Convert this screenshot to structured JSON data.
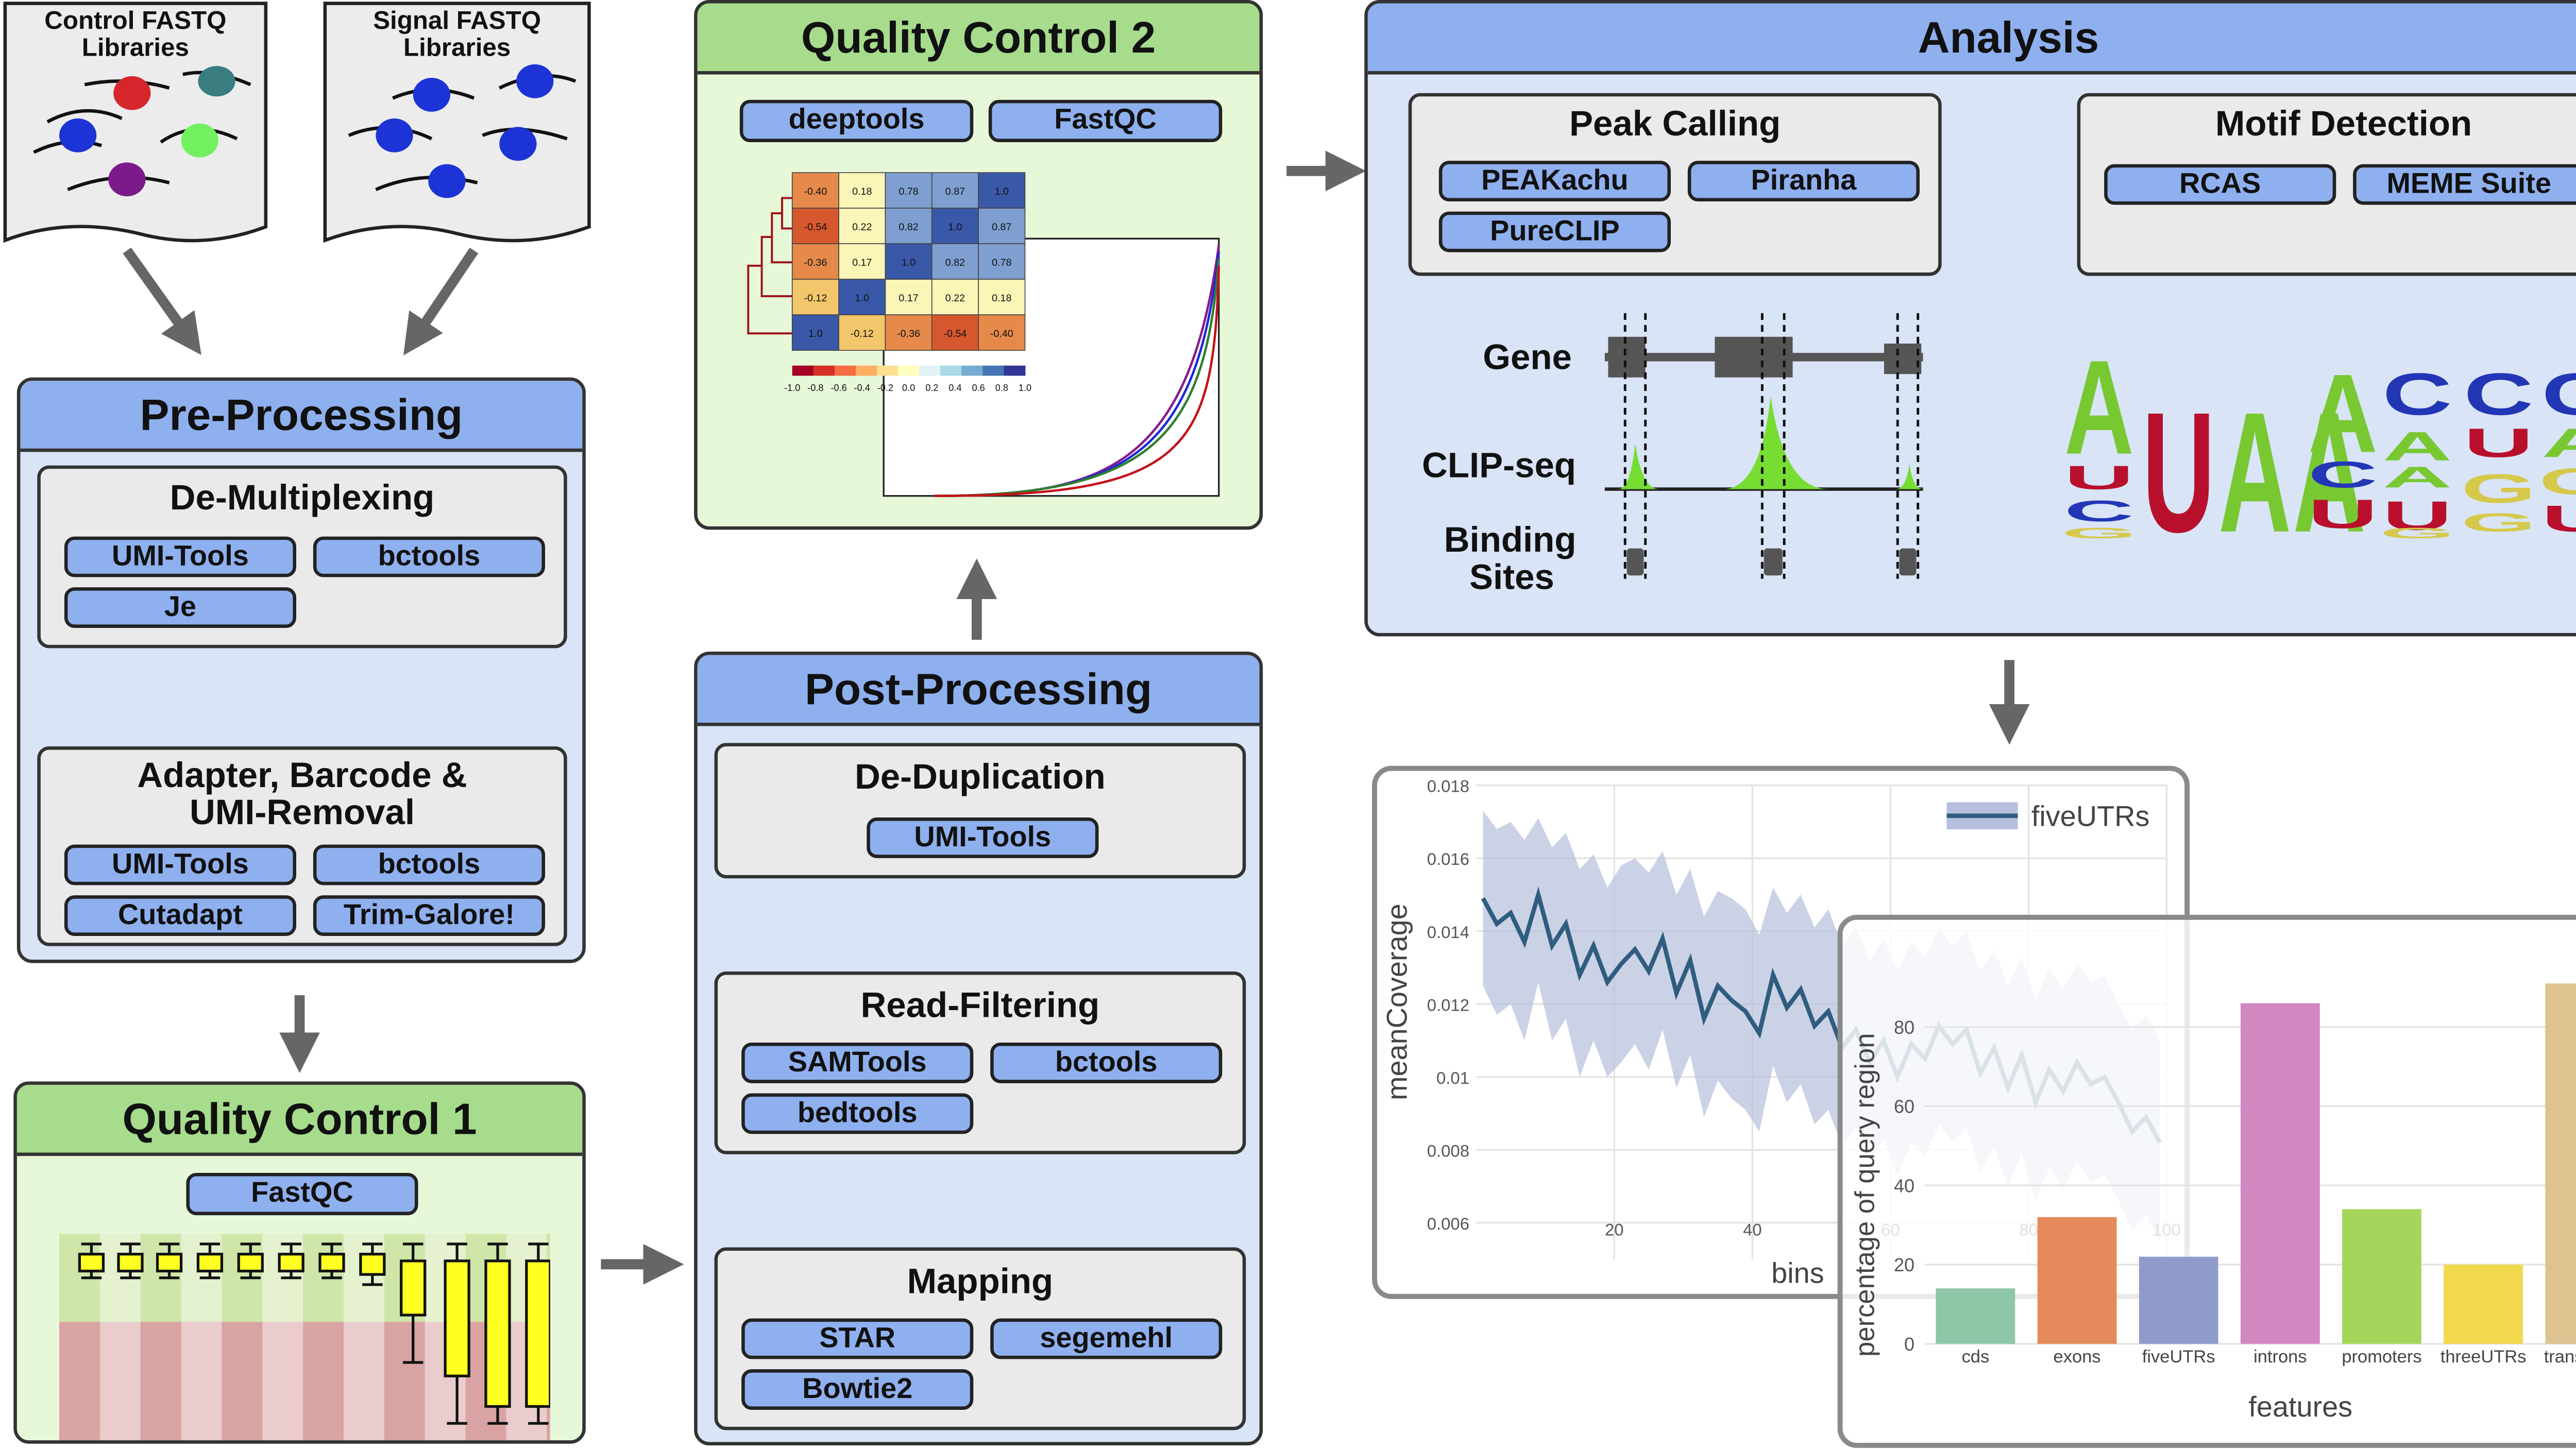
{
  "inputs": {
    "control": "Control FASTQ\nLibraries",
    "control_lines": [
      "Control FASTQ",
      "Libraries"
    ],
    "signal_lines": [
      "Signal FASTQ",
      "Libraries"
    ]
  },
  "preprocessing": {
    "title": "Pre-Processing",
    "demux": {
      "title": "De-Multiplexing",
      "tools": [
        "UMI-Tools",
        "bctools",
        "Je"
      ]
    },
    "adapter": {
      "title_lines": [
        "Adapter, Barcode &",
        "UMI-Removal"
      ],
      "tools": [
        "UMI-Tools",
        "bctools",
        "Cutadapt",
        "Trim-Galore!"
      ]
    }
  },
  "qc1": {
    "title": "Quality Control 1",
    "tool": "FastQC"
  },
  "qc2": {
    "title": "Quality Control 2",
    "tools": [
      "deeptools",
      "FastQC"
    ],
    "heatmap_values": [
      [
        "-0.40",
        "0.18",
        "0.78",
        "0.87",
        "1.0"
      ],
      [
        "-0.54",
        "0.22",
        "0.82",
        "1.0",
        "0.87"
      ],
      [
        "-0.36",
        "0.17",
        "1.0",
        "0.82",
        "0.78"
      ],
      [
        "-0.12",
        "1.0",
        "0.17",
        "0.22",
        "0.18"
      ],
      [
        "1.0",
        "-0.12",
        "-0.36",
        "-0.54",
        "-0.40"
      ]
    ],
    "heatmap_scale": [
      "-1.0",
      "-0.8",
      "-0.6",
      "-0.4",
      "-0.2",
      "0.0",
      "0.2",
      "0.4",
      "0.6",
      "0.8",
      "1.0"
    ]
  },
  "postprocessing": {
    "title": "Post-Processing",
    "dedup": {
      "title": "De-Duplication",
      "tools": [
        "UMI-Tools"
      ]
    },
    "filter": {
      "title": "Read-Filtering",
      "tools": [
        "SAMTools",
        "bctools",
        "bedtools"
      ]
    },
    "mapping": {
      "title": "Mapping",
      "tools": [
        "STAR",
        "segemehl",
        "Bowtie2"
      ]
    }
  },
  "analysis": {
    "title": "Analysis",
    "peak": {
      "title": "Peak Calling",
      "tools": [
        "PEAKachu",
        "Piranha",
        "PureCLIP"
      ]
    },
    "motif": {
      "title": "Motif Detection",
      "tools": [
        "RCAS",
        "MEME Suite"
      ]
    },
    "track_labels": {
      "gene": "Gene",
      "clip": "CLIP-seq",
      "sites_lines": [
        "Binding",
        "Sites"
      ]
    },
    "logo_colors": {
      "A": "#78c832",
      "U": "#b8102c",
      "C": "#2236b6",
      "G": "#d6c84a"
    }
  },
  "colors": {
    "panel_blue": "#d9e4f7",
    "header_blue": "#8fb0ef",
    "panel_green": "#e6f8d8",
    "header_green": "#a6dc8c",
    "tool_blue": "#8fb0ef",
    "arrow": "#666666"
  },
  "chart_data": [
    {
      "type": "line",
      "xlabel": "bins",
      "ylabel": "meanCoverage",
      "ylim": [
        0.005,
        0.018
      ],
      "xlim": [
        0,
        100
      ],
      "xticks": [
        "20",
        "40",
        "60",
        "80",
        "100"
      ],
      "yticks": [
        "0.006",
        "0.008",
        "0.01",
        "0.012",
        "0.014",
        "0.016",
        "0.018"
      ],
      "legend": "top-right",
      "series": [
        {
          "name": "fiveUTRs",
          "x": [
            1,
            3,
            5,
            7,
            9,
            11,
            13,
            15,
            17,
            19,
            21,
            23,
            25,
            27,
            29,
            31,
            33,
            35,
            37,
            39,
            41,
            43,
            45,
            47,
            49,
            51,
            53,
            55,
            57,
            59,
            61,
            63,
            65,
            67,
            69,
            71,
            73,
            75,
            77,
            79,
            81,
            83,
            85,
            87,
            89,
            91,
            93,
            95,
            97,
            99
          ],
          "values": [
            0.0149,
            0.0142,
            0.0145,
            0.0137,
            0.015,
            0.0136,
            0.0142,
            0.0128,
            0.0136,
            0.0126,
            0.0131,
            0.0135,
            0.0129,
            0.0138,
            0.0123,
            0.0132,
            0.0116,
            0.0125,
            0.0121,
            0.0118,
            0.0112,
            0.0128,
            0.0119,
            0.0124,
            0.0114,
            0.0118,
            0.0108,
            0.0113,
            0.0104,
            0.011,
            0.01,
            0.0109,
            0.0105,
            0.0114,
            0.0109,
            0.0113,
            0.0101,
            0.0108,
            0.0097,
            0.0106,
            0.0093,
            0.0102,
            0.0096,
            0.0104,
            0.0098,
            0.01,
            0.0093,
            0.0085,
            0.0089,
            0.0082
          ],
          "band_upper": [
            0.0173,
            0.0168,
            0.017,
            0.0165,
            0.0171,
            0.0163,
            0.0167,
            0.0157,
            0.0161,
            0.0152,
            0.0158,
            0.016,
            0.0156,
            0.0162,
            0.015,
            0.0157,
            0.0144,
            0.0151,
            0.0149,
            0.0146,
            0.0139,
            0.0152,
            0.0145,
            0.015,
            0.0141,
            0.0146,
            0.0136,
            0.0141,
            0.0132,
            0.0138,
            0.0129,
            0.0137,
            0.0133,
            0.0141,
            0.0136,
            0.014,
            0.0129,
            0.0135,
            0.0125,
            0.0133,
            0.0121,
            0.013,
            0.0124,
            0.0131,
            0.0126,
            0.0128,
            0.012,
            0.0113,
            0.0117,
            0.011
          ],
          "band_lower": [
            0.0125,
            0.0117,
            0.012,
            0.011,
            0.0126,
            0.011,
            0.0116,
            0.01,
            0.011,
            0.01,
            0.0104,
            0.0109,
            0.0102,
            0.0113,
            0.0097,
            0.0106,
            0.0089,
            0.0099,
            0.0094,
            0.0091,
            0.0085,
            0.0103,
            0.0093,
            0.0098,
            0.0087,
            0.0091,
            0.0081,
            0.0086,
            0.0077,
            0.0083,
            0.0073,
            0.0082,
            0.0078,
            0.0087,
            0.0082,
            0.0086,
            0.0074,
            0.0081,
            0.007,
            0.0079,
            0.0066,
            0.0075,
            0.0069,
            0.0077,
            0.0071,
            0.0073,
            0.0066,
            0.0058,
            0.0062,
            0.0055
          ]
        }
      ]
    },
    {
      "type": "bar",
      "xlabel": "features",
      "ylabel": "percentage of query region",
      "ylim": [
        0,
        100
      ],
      "yticks": [
        "0",
        "20",
        "40",
        "60",
        "80"
      ],
      "categories": [
        "cds",
        "exons",
        "fiveUTRs",
        "introns",
        "promoters",
        "threeUTRs",
        "transcripts"
      ],
      "values": [
        14,
        32,
        22,
        86,
        34,
        20,
        91
      ],
      "colors": [
        "#8ec7a8",
        "#e58a5a",
        "#8f9ccb",
        "#d287c0",
        "#a3d65a",
        "#f2d84e",
        "#dcc38f"
      ]
    }
  ]
}
